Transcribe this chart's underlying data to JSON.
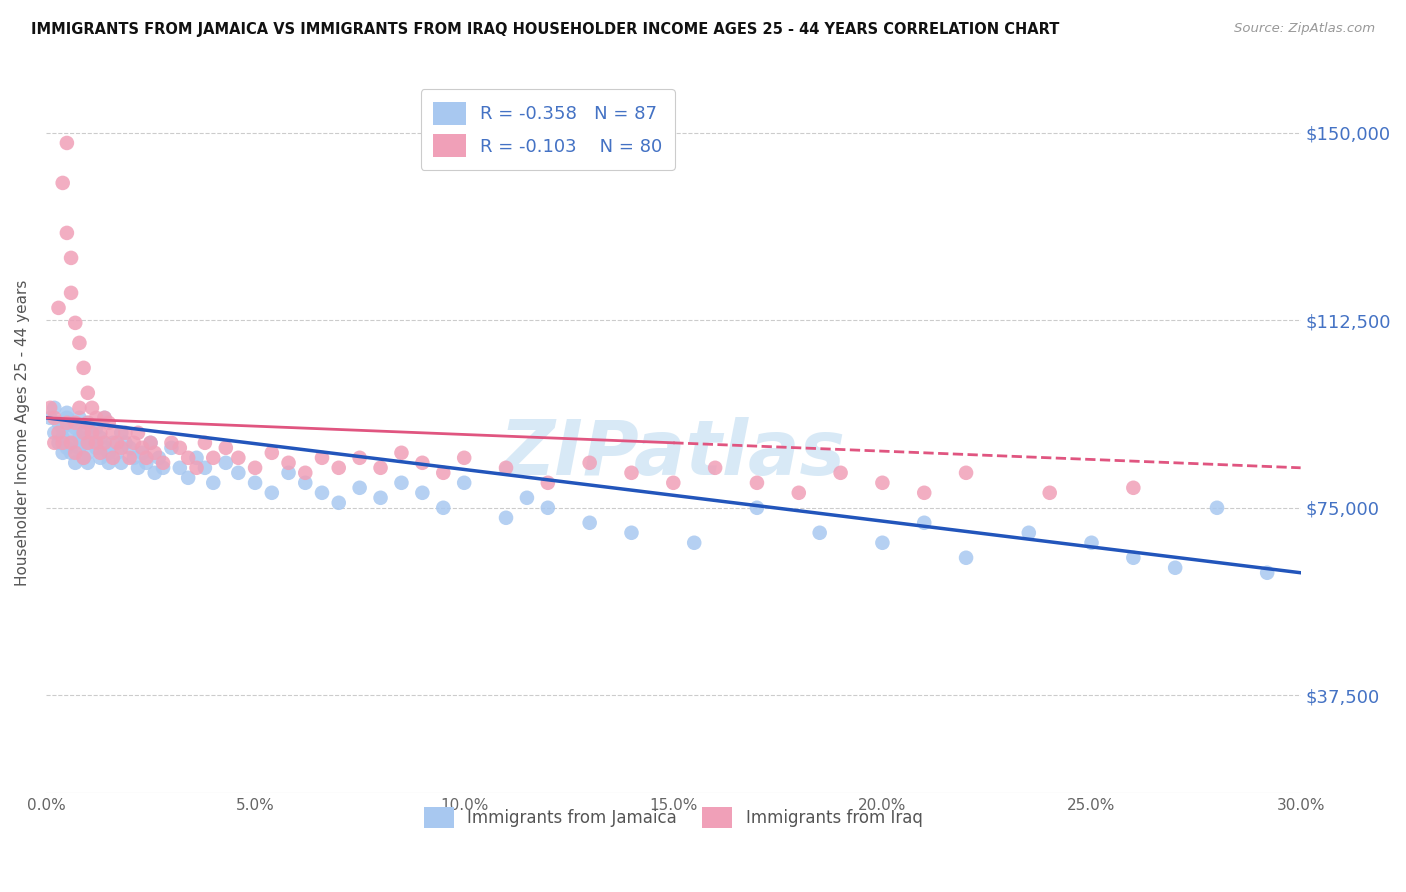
{
  "title": "IMMIGRANTS FROM JAMAICA VS IMMIGRANTS FROM IRAQ HOUSEHOLDER INCOME AGES 25 - 44 YEARS CORRELATION CHART",
  "source": "Source: ZipAtlas.com",
  "ylabel": "Householder Income Ages 25 - 44 years",
  "ytick_labels": [
    "$37,500",
    "$75,000",
    "$112,500",
    "$150,000"
  ],
  "ytick_values": [
    37500,
    75000,
    112500,
    150000
  ],
  "ylim": [
    18000,
    162000
  ],
  "xlim": [
    0.0,
    0.3
  ],
  "r_jamaica": -0.358,
  "n_jamaica": 87,
  "r_iraq": -0.103,
  "n_iraq": 80,
  "color_jamaica": "#a8c8f0",
  "color_iraq": "#f0a0b8",
  "line_color_jamaica": "#2255bb",
  "line_color_iraq": "#e05580",
  "watermark": "ZIPatlas",
  "jamaica_x": [
    0.001,
    0.002,
    0.002,
    0.003,
    0.003,
    0.004,
    0.004,
    0.004,
    0.005,
    0.005,
    0.005,
    0.006,
    0.006,
    0.006,
    0.007,
    0.007,
    0.007,
    0.008,
    0.008,
    0.008,
    0.009,
    0.009,
    0.009,
    0.01,
    0.01,
    0.01,
    0.011,
    0.011,
    0.012,
    0.012,
    0.013,
    0.013,
    0.014,
    0.014,
    0.015,
    0.015,
    0.016,
    0.017,
    0.018,
    0.018,
    0.019,
    0.02,
    0.021,
    0.022,
    0.023,
    0.024,
    0.025,
    0.026,
    0.027,
    0.028,
    0.03,
    0.032,
    0.034,
    0.036,
    0.038,
    0.04,
    0.043,
    0.046,
    0.05,
    0.054,
    0.058,
    0.062,
    0.066,
    0.07,
    0.075,
    0.08,
    0.085,
    0.09,
    0.095,
    0.1,
    0.11,
    0.115,
    0.12,
    0.13,
    0.14,
    0.155,
    0.17,
    0.185,
    0.2,
    0.21,
    0.22,
    0.235,
    0.25,
    0.26,
    0.27,
    0.28,
    0.292
  ],
  "jamaica_y": [
    93000,
    90000,
    95000,
    88000,
    92000,
    86000,
    91000,
    89000,
    94000,
    87000,
    93000,
    90000,
    86000,
    92000,
    88000,
    84000,
    91000,
    89000,
    87000,
    93000,
    85000,
    90000,
    88000,
    86000,
    92000,
    84000,
    90000,
    88000,
    87000,
    91000,
    85000,
    89000,
    87000,
    93000,
    86000,
    84000,
    88000,
    86000,
    90000,
    84000,
    88000,
    87000,
    85000,
    83000,
    86000,
    84000,
    88000,
    82000,
    85000,
    83000,
    87000,
    83000,
    81000,
    85000,
    83000,
    80000,
    84000,
    82000,
    80000,
    78000,
    82000,
    80000,
    78000,
    76000,
    79000,
    77000,
    80000,
    78000,
    75000,
    80000,
    73000,
    77000,
    75000,
    72000,
    70000,
    68000,
    75000,
    70000,
    68000,
    72000,
    65000,
    70000,
    68000,
    65000,
    63000,
    75000,
    62000
  ],
  "iraq_x": [
    0.001,
    0.002,
    0.002,
    0.003,
    0.003,
    0.004,
    0.004,
    0.005,
    0.005,
    0.005,
    0.006,
    0.006,
    0.006,
    0.007,
    0.007,
    0.007,
    0.008,
    0.008,
    0.009,
    0.009,
    0.009,
    0.01,
    0.01,
    0.01,
    0.011,
    0.011,
    0.012,
    0.012,
    0.013,
    0.013,
    0.014,
    0.014,
    0.015,
    0.016,
    0.016,
    0.017,
    0.018,
    0.019,
    0.02,
    0.021,
    0.022,
    0.023,
    0.024,
    0.025,
    0.026,
    0.028,
    0.03,
    0.032,
    0.034,
    0.036,
    0.038,
    0.04,
    0.043,
    0.046,
    0.05,
    0.054,
    0.058,
    0.062,
    0.066,
    0.07,
    0.075,
    0.08,
    0.085,
    0.09,
    0.095,
    0.1,
    0.11,
    0.12,
    0.13,
    0.14,
    0.15,
    0.16,
    0.17,
    0.18,
    0.19,
    0.2,
    0.21,
    0.22,
    0.24,
    0.26
  ],
  "iraq_y": [
    95000,
    93000,
    88000,
    115000,
    90000,
    140000,
    88000,
    148000,
    92000,
    130000,
    125000,
    88000,
    118000,
    92000,
    112000,
    86000,
    108000,
    95000,
    90000,
    103000,
    85000,
    98000,
    92000,
    88000,
    95000,
    90000,
    88000,
    93000,
    90000,
    86000,
    93000,
    88000,
    92000,
    90000,
    85000,
    88000,
    87000,
    90000,
    85000,
    88000,
    90000,
    87000,
    85000,
    88000,
    86000,
    84000,
    88000,
    87000,
    85000,
    83000,
    88000,
    85000,
    87000,
    85000,
    83000,
    86000,
    84000,
    82000,
    85000,
    83000,
    85000,
    83000,
    86000,
    84000,
    82000,
    85000,
    83000,
    80000,
    84000,
    82000,
    80000,
    83000,
    80000,
    78000,
    82000,
    80000,
    78000,
    82000,
    78000,
    79000
  ]
}
